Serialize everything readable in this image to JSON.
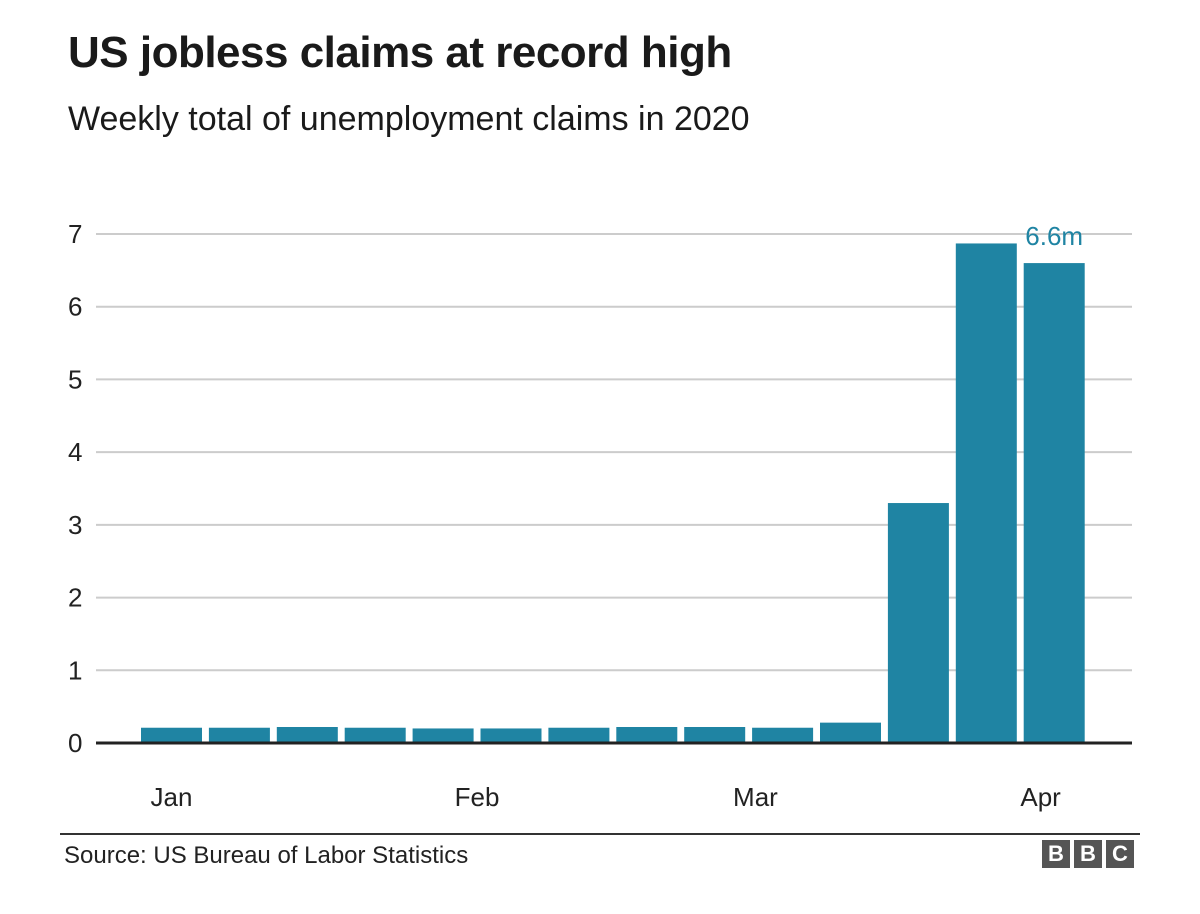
{
  "header": {
    "title": "US jobless claims at record high",
    "subtitle": "Weekly total of unemployment claims in 2020"
  },
  "footer": {
    "source": "Source: US Bureau of Labor Statistics",
    "logo_letters": [
      "B",
      "B",
      "C"
    ]
  },
  "colors": {
    "bar": "#1f84a3",
    "grid": "#cccccc",
    "axis": "#222222",
    "label_highlight": "#1f84a3"
  },
  "chart_data": {
    "type": "bar",
    "title": "US jobless claims at record high",
    "subtitle": "Weekly total of unemployment claims in 2020",
    "xlabel": "",
    "ylabel": "",
    "ylim": [
      0,
      7
    ],
    "yticks": [
      0,
      1,
      2,
      3,
      4,
      5,
      6,
      7
    ],
    "grid": true,
    "x_tick_labels": [
      {
        "label": "Jan",
        "week_index": 0
      },
      {
        "label": "Feb",
        "week_index": 4.5
      },
      {
        "label": "Mar",
        "week_index": 8.6
      },
      {
        "label": "Apr",
        "week_index": 12.8
      }
    ],
    "series": [
      {
        "values": [
          0.21,
          0.21,
          0.22,
          0.21,
          0.2,
          0.2,
          0.21,
          0.22,
          0.22,
          0.21,
          0.28,
          3.3,
          6.87,
          6.6
        ]
      }
    ],
    "annotations": [
      {
        "text": "6.6m",
        "bar_index": 13
      }
    ]
  }
}
